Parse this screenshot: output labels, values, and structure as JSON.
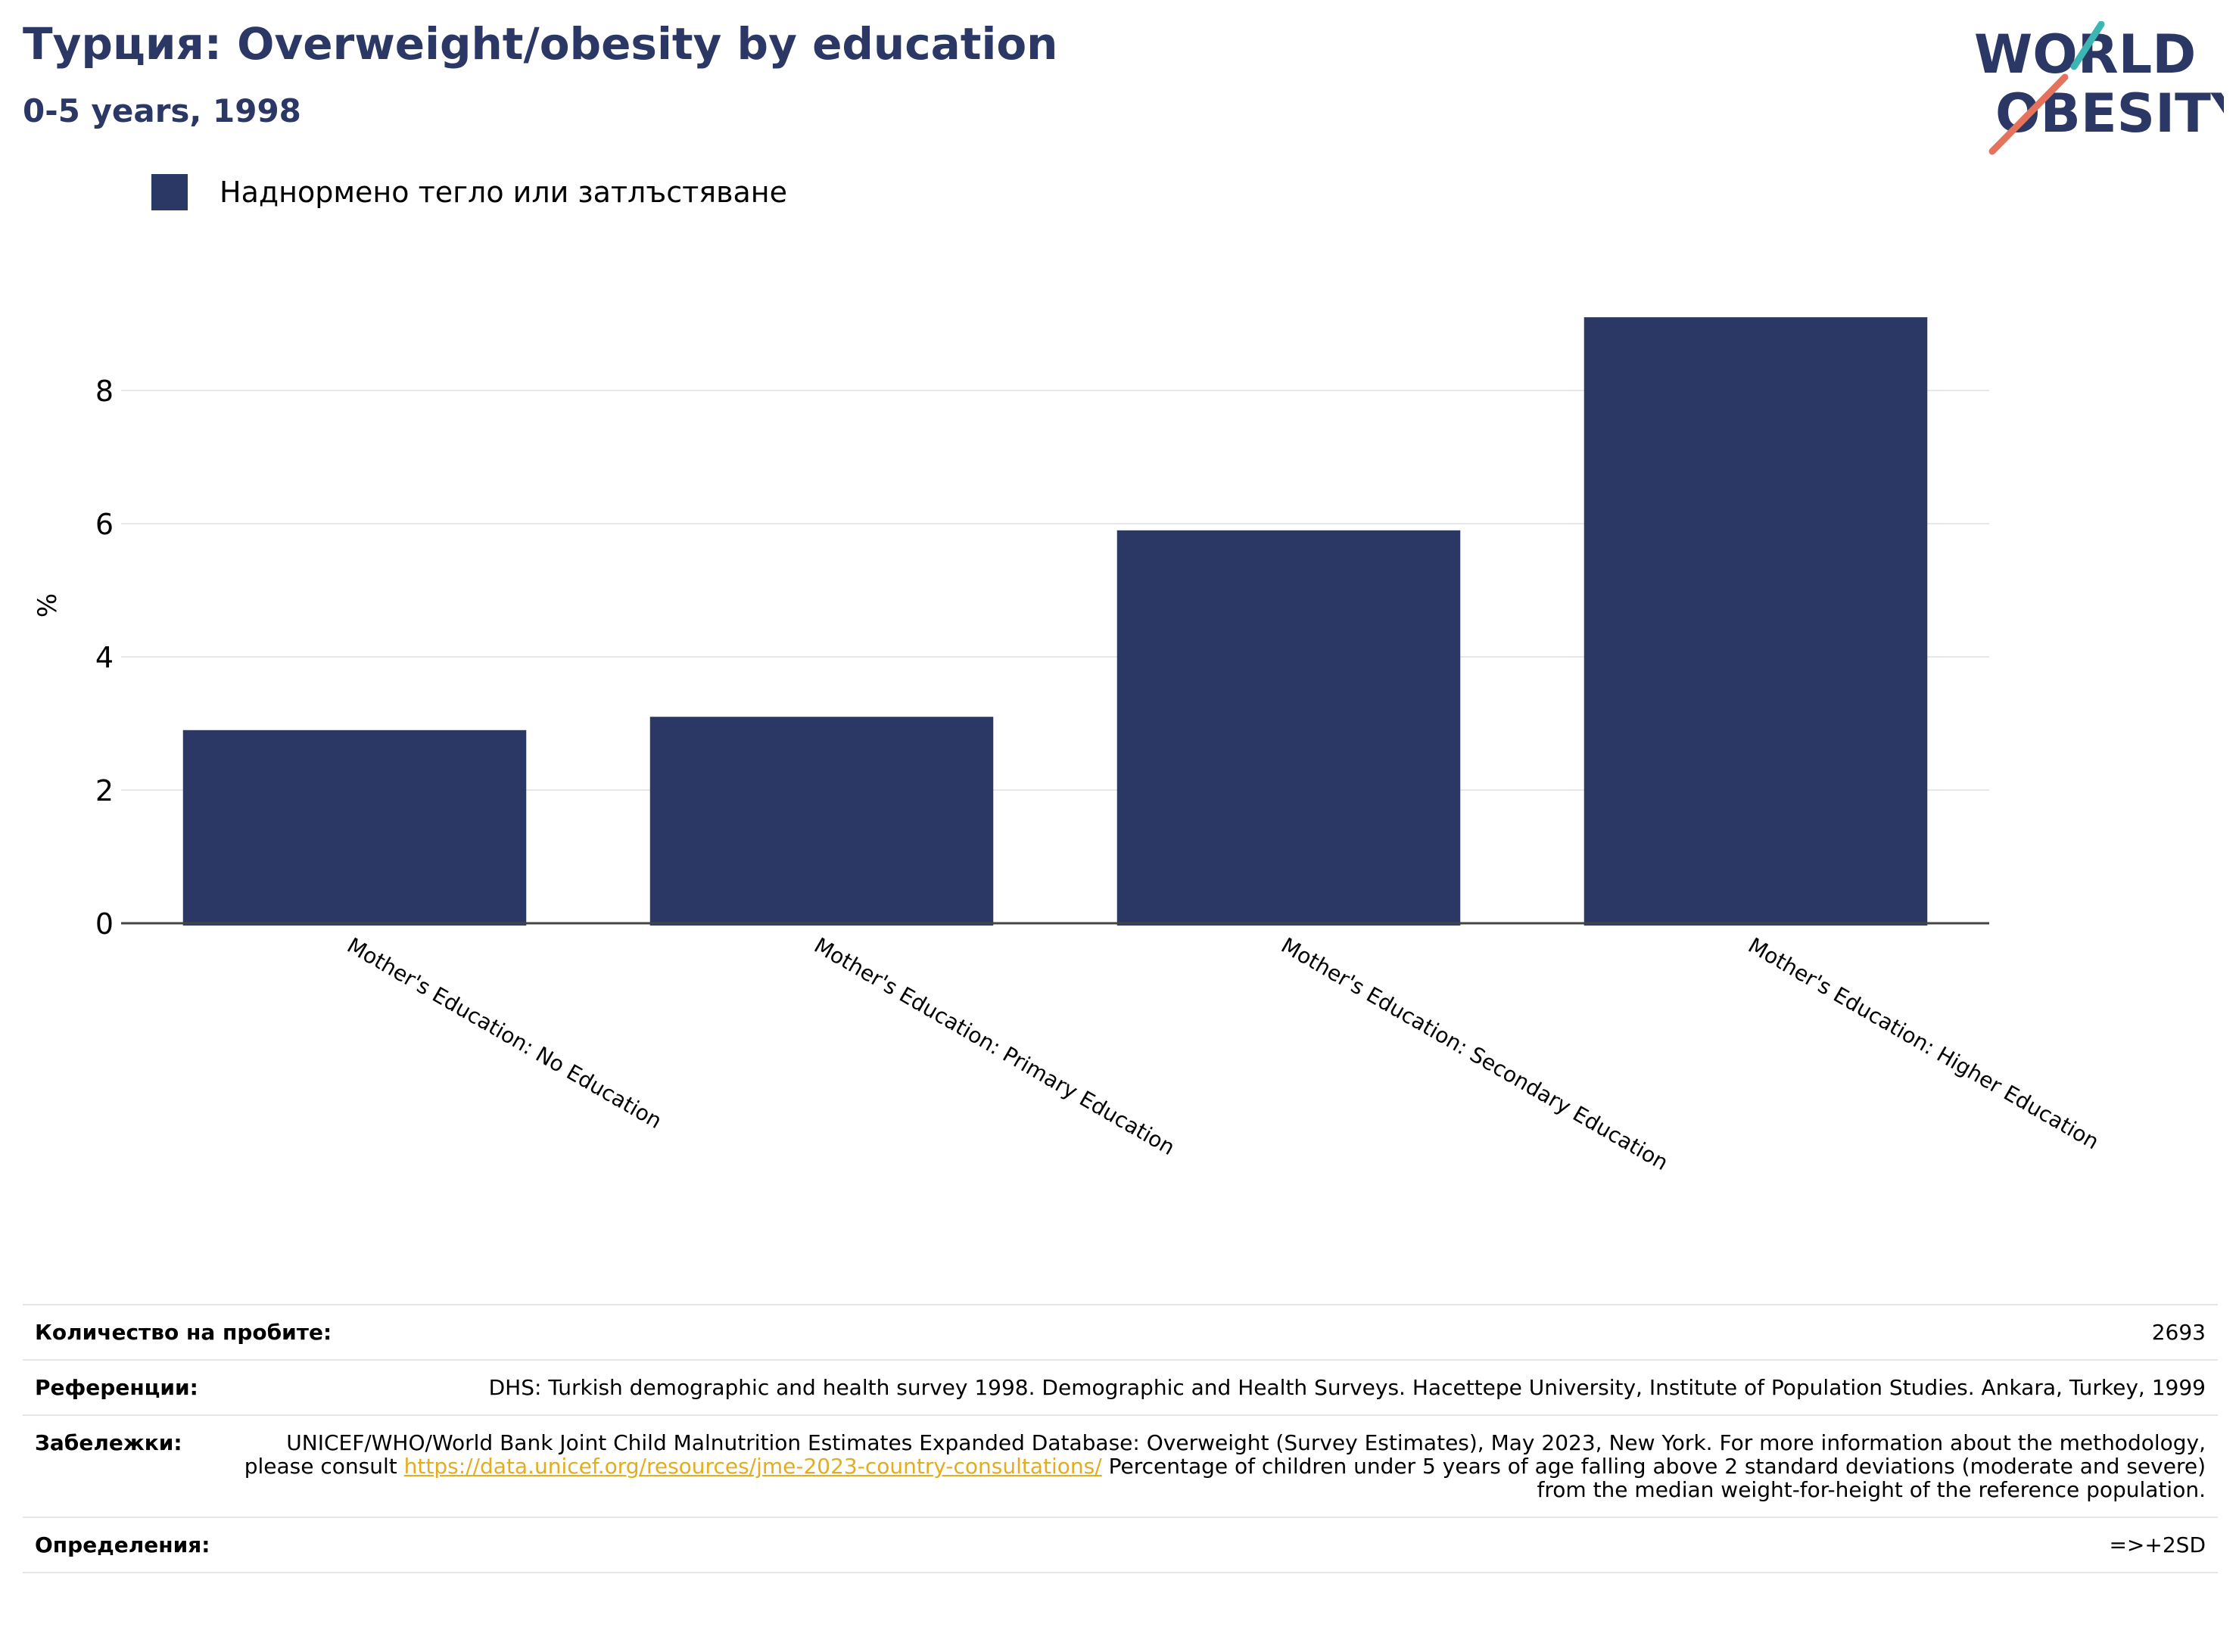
{
  "title": "Турция: Overweight/obesity by education",
  "subtitle": "0-5 years, 1998",
  "logo": {
    "line1": "WORLD",
    "line2": "OBESITY",
    "icon": "world-obesity-logo"
  },
  "colors": {
    "accent": "#2b3764",
    "link": "#e3ad1f",
    "logo_teal": "#3bb6b2",
    "logo_coral": "#e5725c"
  },
  "chart_data": {
    "type": "bar",
    "categories": [
      "Mother's Education: No Education",
      "Mother's Education: Primary Education",
      "Mother's Education: Secondary Education",
      "Mother's Education: Higher Education"
    ],
    "series": [
      {
        "name": "Наднормено тегло или затлъстяване",
        "color": "#2b3764",
        "values": [
          2.9,
          3.1,
          5.9,
          9.1
        ]
      }
    ],
    "ylabel": "%",
    "xlabel": "",
    "ylim": [
      0,
      10
    ],
    "yticks": [
      0,
      2,
      4,
      6,
      8
    ],
    "grid": true,
    "legend": "top-left"
  },
  "footer": {
    "sample_label": "Количество на пробите:",
    "sample_value": "2693",
    "references_label": "Референции:",
    "references_value": "DHS: Turkish demographic and health survey 1998. Demographic and Health Surveys. Hacettepe University, Institute of Population Studies. Ankara, Turkey, 1999",
    "notes_label": "Забележки:",
    "notes_before": "UNICEF/WHO/World Bank Joint Child Malnutrition Estimates Expanded Database: Overweight (Survey Estimates), May 2023, New York. For more information about the methodology, please consult ",
    "notes_link": "https://data.unicef.org/resources/jme-2023-country-consultations/",
    "notes_after": " Percentage of children under 5 years of age falling above 2 standard deviations (moderate and severe) from the median weight-for-height of the reference population.",
    "definitions_label": "Определения:",
    "definitions_value": "=>+2SD"
  }
}
